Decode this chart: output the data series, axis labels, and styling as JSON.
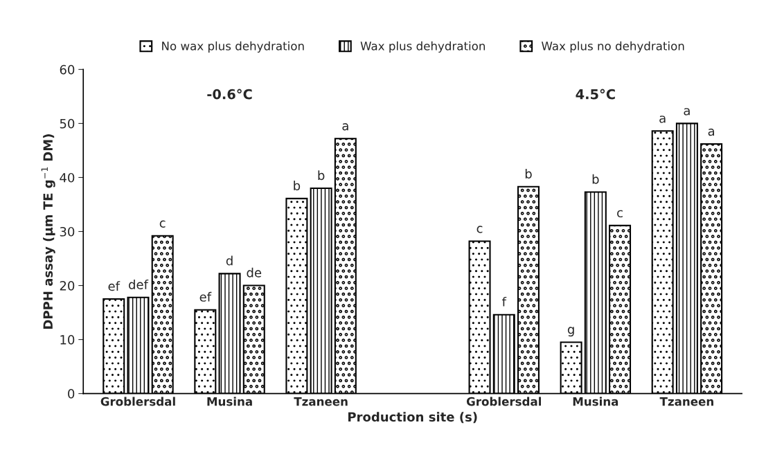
{
  "chart_data": {
    "type": "bar",
    "xlabel": "Production site (s)",
    "ylabel": "DPPH assay (µm TE g$^{−1}$ DM)",
    "categories": [
      "Groblersdal",
      "Musina",
      "Tzaneen",
      null,
      "Groblersdal",
      "Musina",
      "Tzaneen"
    ],
    "series": [
      {
        "name": "No wax plus dehydration",
        "color": "#000000",
        "values": [
          17.5,
          15.5,
          36.1,
          null,
          28.2,
          9.5,
          48.6
        ],
        "value_labels": [
          "ef",
          "ef",
          "b",
          null,
          "c",
          "g",
          "a"
        ]
      },
      {
        "name": "Wax plus dehydration",
        "color": "#000000",
        "values": [
          17.8,
          22.2,
          38.0,
          null,
          14.6,
          37.3,
          50.0
        ],
        "value_labels": [
          "def",
          "d",
          "b",
          null,
          "f",
          "b",
          "a"
        ]
      },
      {
        "name": "Wax plus no dehydration",
        "color": "#000000",
        "values": [
          29.2,
          20.0,
          47.2,
          null,
          38.3,
          31.1,
          46.2
        ],
        "value_labels": [
          "c",
          "de",
          "a",
          null,
          "b",
          "c",
          "a"
        ]
      }
    ],
    "annotations": [
      "-0.6°C",
      "4.5°C"
    ],
    "ylim": [
      0,
      60
    ],
    "yticks": [
      0,
      10,
      20,
      30,
      40,
      50,
      60
    ],
    "grid": false,
    "legend": "top"
  }
}
